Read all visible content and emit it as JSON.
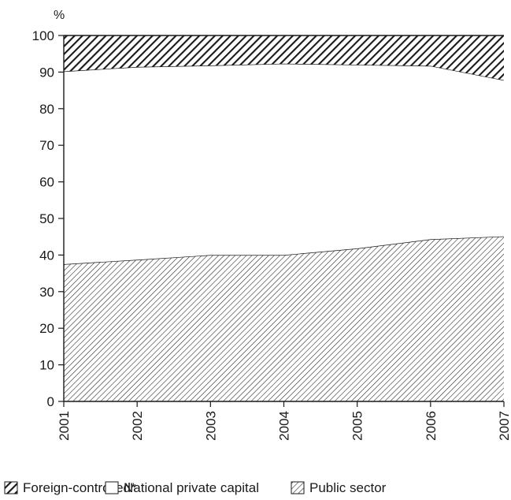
{
  "chart_data": {
    "type": "area",
    "stacked": true,
    "ylabel": "%",
    "ylim": [
      0,
      100
    ],
    "yticks": [
      0,
      10,
      20,
      30,
      40,
      50,
      60,
      70,
      80,
      90,
      100
    ],
    "x": [
      "2001",
      "2002",
      "2003",
      "2004",
      "2005",
      "2006",
      "2007"
    ],
    "series": [
      {
        "name": "Public sector",
        "pattern": "fine-hatch",
        "values": [
          37.5,
          38.7,
          40.0,
          40.0,
          41.8,
          44.3,
          45.1
        ]
      },
      {
        "name": "National private capital",
        "pattern": "none",
        "values": [
          52.7,
          52.7,
          51.8,
          52.3,
          50.2,
          47.4,
          42.7
        ]
      },
      {
        "name": "Foreign-controlled*",
        "pattern": "dense-hatch",
        "values": [
          9.8,
          8.6,
          8.2,
          7.7,
          8.0,
          8.3,
          12.2
        ]
      }
    ],
    "legend": [
      {
        "name": "Foreign-controlled*",
        "pattern": "dense-hatch"
      },
      {
        "name": "National private capital",
        "pattern": "none"
      },
      {
        "name": "Public sector",
        "pattern": "fine-hatch"
      }
    ],
    "legend_position": "bottom",
    "grid": false,
    "colors": {
      "ink": "#1a1a1a",
      "background": "#ffffff"
    }
  }
}
